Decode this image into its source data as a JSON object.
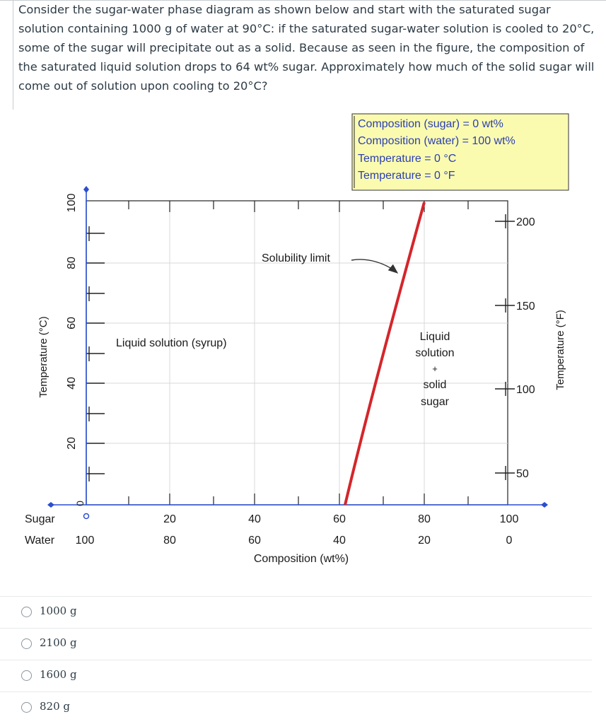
{
  "question": {
    "text": "Consider the sugar-water phase diagram as shown below and start with the saturated sugar solution containing 1000 g of water at 90°C: if the saturated sugar-water solution is cooled to 20°C, some of the sugar will precipitate out as a solid. Because as seen in the figure, the composition of the saturated liquid solution drops to 64 wt% sugar. Approximately how much of the solid sugar will come out of solution upon cooling to 20°C?"
  },
  "diagram": {
    "readout": [
      "Composition (sugar) = 0 wt%",
      "Composition (water) = 100 wt%",
      "Temperature = 0 °C",
      "Temperature = 0 °F"
    ],
    "colors": {
      "curve": "#d4262b",
      "axis_blue": "#2b4fd0",
      "readout_bg": "#fbfbb0"
    },
    "left_axis_title": "Temperature (°C)",
    "right_axis_title": "Temperature (°F)",
    "left_ticks": [
      "100",
      "80",
      "60",
      "40",
      "20",
      "0"
    ],
    "right_ticks": [
      "200",
      "150",
      "100",
      "50"
    ],
    "sugar_label": "Sugar",
    "water_label": "Water",
    "sugar_ticks": [
      "0",
      "20",
      "40",
      "60",
      "80",
      "100"
    ],
    "water_ticks": [
      "100",
      "80",
      "60",
      "40",
      "20",
      "0"
    ],
    "x_axis_title": "Composition (wt%)",
    "region_labels": {
      "solubility": "Solubility limit",
      "liquid": "Liquid solution (syrup)",
      "two_phase": [
        "Liquid",
        "solution",
        "+",
        "solid",
        "sugar"
      ]
    }
  },
  "answers": [
    {
      "label": "1000 g"
    },
    {
      "label": "2100 g"
    },
    {
      "label": "1600 g"
    },
    {
      "label": "820 g"
    }
  ]
}
